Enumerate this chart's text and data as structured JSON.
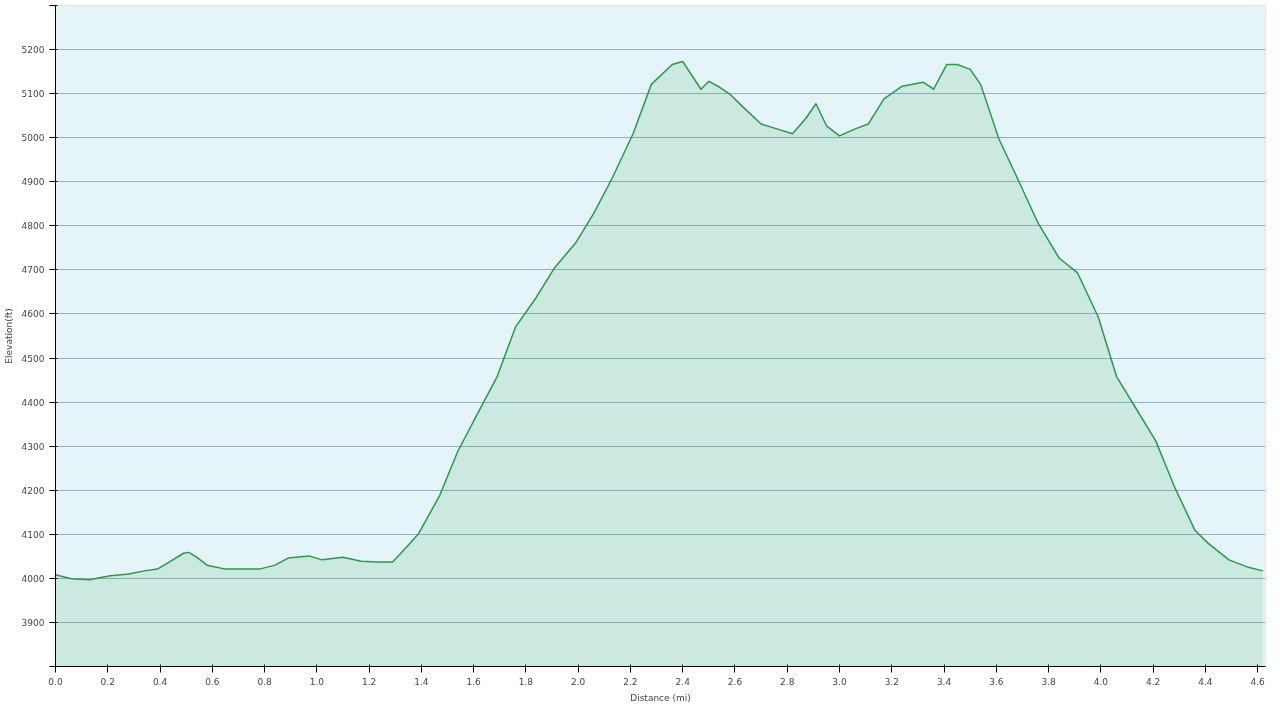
{
  "chart_data": {
    "type": "area",
    "xlabel": "Distance (mi)",
    "ylabel": "Elevation(ft)",
    "xlim": [
      0,
      4.63
    ],
    "ylim": [
      3800,
      5300
    ],
    "xticks": [
      {
        "value": 0,
        "label": "0.0"
      },
      {
        "value": 0.2,
        "label": "0.2"
      },
      {
        "value": 0.4,
        "label": "0.4"
      },
      {
        "value": 0.6,
        "label": "0.6"
      },
      {
        "value": 0.8,
        "label": "0.8"
      },
      {
        "value": 1.0,
        "label": "1.0"
      },
      {
        "value": 1.2,
        "label": "1.2"
      },
      {
        "value": 1.4,
        "label": "1.4"
      },
      {
        "value": 1.6,
        "label": "1.6"
      },
      {
        "value": 1.8,
        "label": "1.8"
      },
      {
        "value": 2.0,
        "label": "2.0"
      },
      {
        "value": 2.2,
        "label": "2.2"
      },
      {
        "value": 2.4,
        "label": "2.4"
      },
      {
        "value": 2.6,
        "label": "2.6"
      },
      {
        "value": 2.8,
        "label": "2.8"
      },
      {
        "value": 3.0,
        "label": "3.0"
      },
      {
        "value": 3.2,
        "label": "3.2"
      },
      {
        "value": 3.4,
        "label": "3.4"
      },
      {
        "value": 3.6,
        "label": "3.6"
      },
      {
        "value": 3.8,
        "label": "3.8"
      },
      {
        "value": 4.0,
        "label": "4.0"
      },
      {
        "value": 4.2,
        "label": "4.2"
      },
      {
        "value": 4.4,
        "label": "4.4"
      },
      {
        "value": 4.6,
        "label": "4.6"
      }
    ],
    "yticks": [
      {
        "value": 3800,
        "label": null
      },
      3900,
      4000,
      4100,
      4200,
      4300,
      4400,
      4500,
      4600,
      4700,
      4800,
      4900,
      5000,
      5100,
      5200,
      {
        "value": 5300,
        "label": null
      }
    ],
    "grid": "y",
    "series": [
      {
        "color": "#2a9a45",
        "x": [
          0,
          0.06,
          0.13,
          0.21,
          0.28,
          0.34,
          0.39,
          0.43,
          0.49,
          0.51,
          0.54,
          0.58,
          0.65,
          0.73,
          0.78,
          0.84,
          0.89,
          0.97,
          1.02,
          1.1,
          1.17,
          1.23,
          1.29,
          1.34,
          1.39,
          1.47,
          1.54,
          1.61,
          1.69,
          1.76,
          1.84,
          1.91,
          1.99,
          2.06,
          2.13,
          2.21,
          2.28,
          2.36,
          2.4,
          2.47,
          2.5,
          2.54,
          2.58,
          2.63,
          2.7,
          2.76,
          2.82,
          2.87,
          2.91,
          2.95,
          3.0,
          3.06,
          3.11,
          3.17,
          3.24,
          3.32,
          3.36,
          3.41,
          3.45,
          3.5,
          3.54,
          3.61,
          3.69,
          3.76,
          3.84,
          3.91,
          3.99,
          4.06,
          4.13,
          4.21,
          4.28,
          4.36,
          4.41,
          4.49,
          4.56,
          4.62
        ],
        "values": [
          4008,
          3999,
          3997,
          4006,
          4010,
          4017,
          4021,
          4035,
          4057,
          4059,
          4048,
          4030,
          4021,
          4021,
          4021,
          4030,
          4046,
          4051,
          4042,
          4048,
          4039,
          4037,
          4037,
          4069,
          4102,
          4188,
          4289,
          4368,
          4458,
          4570,
          4638,
          4705,
          4761,
          4829,
          4908,
          5009,
          5121,
          5166,
          5173,
          5110,
          5128,
          5115,
          5099,
          5070,
          5031,
          5020,
          5009,
          5043,
          5077,
          5027,
          5004,
          5020,
          5031,
          5088,
          5117,
          5126,
          5110,
          5166,
          5166,
          5155,
          5121,
          4997,
          4896,
          4806,
          4727,
          4694,
          4593,
          4458,
          4390,
          4312,
          4210,
          4109,
          4080,
          4042,
          4026,
          4017
        ]
      }
    ]
  }
}
